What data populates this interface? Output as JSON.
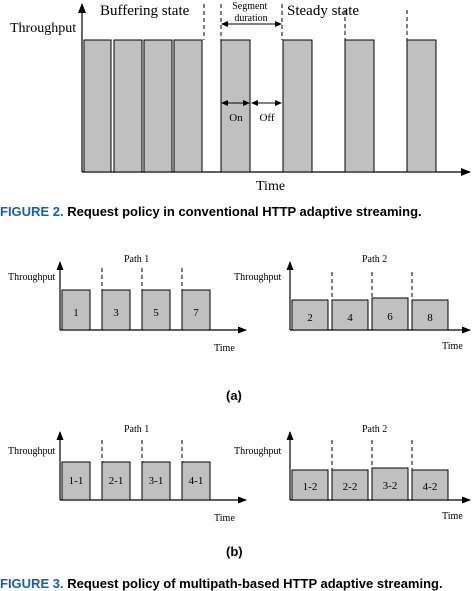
{
  "figure2": {
    "ylabel": "Throughput",
    "xlabel": "Time",
    "buffering_label": "Buffering state",
    "steady_label": "Steady state",
    "segment_duration_label": [
      "Segment",
      "duration"
    ],
    "on_label": "On",
    "off_label": "Off",
    "caption_number": "FIGURE 2.",
    "caption_text": "Request policy in conventional HTTP adaptive streaming."
  },
  "figure3": {
    "subfig_a_label": "(a)",
    "subfig_b_label": "(b)",
    "caption_number": "FIGURE 3.",
    "caption_text": "Request policy of multipath-based HTTP adaptive streaming."
  },
  "panels": [
    {
      "title": "Path 1",
      "ylabel": "Throughput",
      "xlabel": "Time",
      "labels": [
        "1",
        "3",
        "5",
        "7"
      ]
    },
    {
      "title": "Path 2",
      "ylabel": "Throughput",
      "xlabel": "Time",
      "labels": [
        "2",
        "4",
        "6",
        "8"
      ]
    },
    {
      "title": "Path 1",
      "ylabel": "Throughput",
      "xlabel": "Time",
      "labels": [
        "1-1",
        "2-1",
        "3-1",
        "4-1"
      ]
    },
    {
      "title": "Path 2",
      "ylabel": "Throughput",
      "xlabel": "Time",
      "labels": [
        "1-2",
        "2-2",
        "3-2",
        "4-2"
      ]
    }
  ],
  "colors": {
    "bar_fill": "#c0c0c0",
    "caption_number": "#1a5fa8"
  }
}
